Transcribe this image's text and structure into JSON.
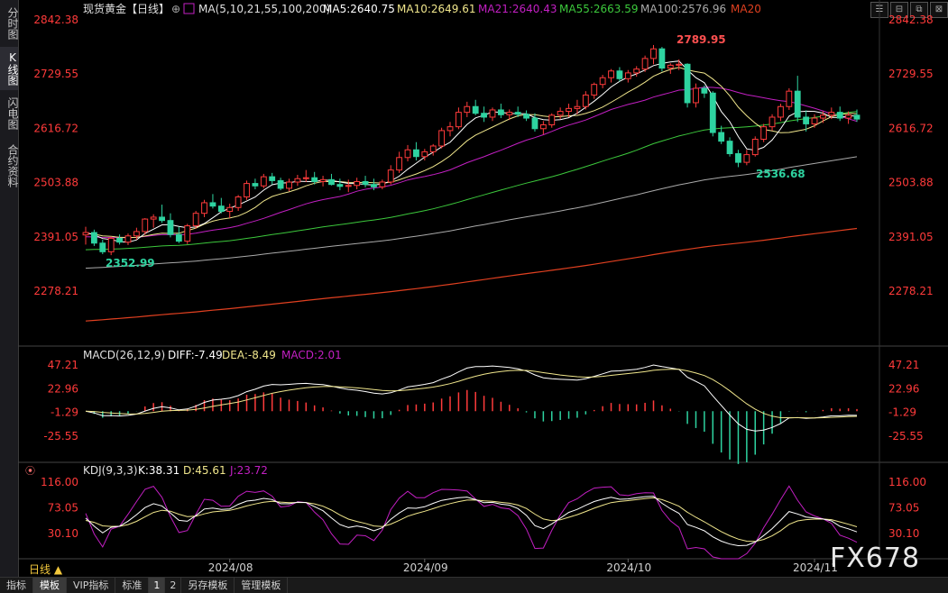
{
  "sidebar": {
    "items": [
      {
        "label": "分时图"
      },
      {
        "label": "K线图"
      },
      {
        "label": "闪电图"
      },
      {
        "label": "合约资料"
      }
    ]
  },
  "window_buttons": [
    "☰",
    "⊟",
    "⧉",
    "⊠"
  ],
  "legend": {
    "instrument": "现货黄金【日线】",
    "ma_group": "MA(5,10,21,55,100,200)",
    "ma5": "MA5:2640.75",
    "ma10": "MA10:2649.61",
    "ma21": "MA21:2640.43",
    "ma55": "MA55:2663.59",
    "ma100": "MA100:2576.96",
    "ma20": "MA20",
    "macd_title": "MACD(26,12,9)",
    "diff": "DIFF:-7.49",
    "dea": "DEA:-8.49",
    "macd_val": "MACD:2.01",
    "kdj_title": "KDJ(9,3,3)",
    "k": "K:38.31",
    "d": "D:45.61",
    "j": "J:23.72"
  },
  "axis": {
    "price_ticks": [
      "2842.38",
      "2729.55",
      "2616.72",
      "2503.88",
      "2391.05",
      "2278.21"
    ],
    "macd_ticks": [
      "47.21",
      "22.96",
      "-1.29",
      "-25.55"
    ],
    "kdj_ticks": [
      "116.00",
      "73.05",
      "30.10"
    ],
    "dates": [
      "2024/08",
      "2024/09",
      "2024/10",
      "2024/11"
    ]
  },
  "annotations": {
    "high": "2789.95",
    "low_nov": "2536.68",
    "low_aug": "2352.99"
  },
  "period": "日线 ▲",
  "watermark": "FX678",
  "bottom_tabs": [
    {
      "label": "指标"
    },
    {
      "label": "模板"
    },
    {
      "label": "VIP指标"
    },
    {
      "label": "标准"
    },
    {
      "label": "1"
    },
    {
      "label": "2"
    },
    {
      "label": "另存模板"
    },
    {
      "label": "管理模板"
    }
  ],
  "colors": {
    "up": "#ff3b3b",
    "down": "#2ed3a0",
    "ma5": "#ffffff",
    "ma10": "#f0e68c",
    "ma21": "#c21fc2",
    "ma55": "#3cc83c",
    "ma100": "#aaaaaa",
    "ma200": "#e04020",
    "axis_text": "#ff3a3a",
    "kdj_j": "#c21fc2"
  },
  "chart_data": {
    "type": "candlestick",
    "title": "现货黄金【日线】",
    "ylim": [
      2278.21,
      2842.38
    ],
    "candles": [
      {
        "o": 2395,
        "h": 2412,
        "l": 2375,
        "c": 2400
      },
      {
        "o": 2400,
        "h": 2406,
        "l": 2372,
        "c": 2378
      },
      {
        "o": 2378,
        "h": 2385,
        "l": 2355,
        "c": 2360
      },
      {
        "o": 2360,
        "h": 2392,
        "l": 2353,
        "c": 2388
      },
      {
        "o": 2388,
        "h": 2396,
        "l": 2375,
        "c": 2380
      },
      {
        "o": 2380,
        "h": 2398,
        "l": 2374,
        "c": 2393
      },
      {
        "o": 2393,
        "h": 2410,
        "l": 2385,
        "c": 2402
      },
      {
        "o": 2402,
        "h": 2430,
        "l": 2395,
        "c": 2428
      },
      {
        "o": 2428,
        "h": 2438,
        "l": 2410,
        "c": 2432
      },
      {
        "o": 2432,
        "h": 2458,
        "l": 2420,
        "c": 2425
      },
      {
        "o": 2425,
        "h": 2440,
        "l": 2390,
        "c": 2396
      },
      {
        "o": 2396,
        "h": 2412,
        "l": 2378,
        "c": 2382
      },
      {
        "o": 2382,
        "h": 2418,
        "l": 2376,
        "c": 2414
      },
      {
        "o": 2414,
        "h": 2445,
        "l": 2408,
        "c": 2440
      },
      {
        "o": 2440,
        "h": 2468,
        "l": 2432,
        "c": 2462
      },
      {
        "o": 2462,
        "h": 2480,
        "l": 2450,
        "c": 2455
      },
      {
        "o": 2455,
        "h": 2472,
        "l": 2440,
        "c": 2444
      },
      {
        "o": 2444,
        "h": 2460,
        "l": 2430,
        "c": 2452
      },
      {
        "o": 2452,
        "h": 2478,
        "l": 2445,
        "c": 2474
      },
      {
        "o": 2474,
        "h": 2508,
        "l": 2468,
        "c": 2502
      },
      {
        "o": 2502,
        "h": 2512,
        "l": 2490,
        "c": 2497
      },
      {
        "o": 2497,
        "h": 2522,
        "l": 2492,
        "c": 2516
      },
      {
        "o": 2516,
        "h": 2524,
        "l": 2500,
        "c": 2508
      },
      {
        "o": 2508,
        "h": 2514,
        "l": 2488,
        "c": 2492
      },
      {
        "o": 2492,
        "h": 2512,
        "l": 2486,
        "c": 2505
      },
      {
        "o": 2505,
        "h": 2520,
        "l": 2497,
        "c": 2512
      },
      {
        "o": 2512,
        "h": 2530,
        "l": 2505,
        "c": 2514
      },
      {
        "o": 2514,
        "h": 2526,
        "l": 2500,
        "c": 2506
      },
      {
        "o": 2506,
        "h": 2518,
        "l": 2496,
        "c": 2510
      },
      {
        "o": 2510,
        "h": 2522,
        "l": 2498,
        "c": 2500
      },
      {
        "o": 2500,
        "h": 2512,
        "l": 2488,
        "c": 2496
      },
      {
        "o": 2496,
        "h": 2510,
        "l": 2484,
        "c": 2498
      },
      {
        "o": 2498,
        "h": 2514,
        "l": 2490,
        "c": 2506
      },
      {
        "o": 2506,
        "h": 2518,
        "l": 2494,
        "c": 2500
      },
      {
        "o": 2500,
        "h": 2512,
        "l": 2488,
        "c": 2495
      },
      {
        "o": 2495,
        "h": 2510,
        "l": 2490,
        "c": 2505
      },
      {
        "o": 2505,
        "h": 2540,
        "l": 2500,
        "c": 2530
      },
      {
        "o": 2530,
        "h": 2568,
        "l": 2524,
        "c": 2556
      },
      {
        "o": 2556,
        "h": 2582,
        "l": 2548,
        "c": 2572
      },
      {
        "o": 2572,
        "h": 2588,
        "l": 2550,
        "c": 2558
      },
      {
        "o": 2558,
        "h": 2574,
        "l": 2550,
        "c": 2568
      },
      {
        "o": 2568,
        "h": 2584,
        "l": 2560,
        "c": 2580
      },
      {
        "o": 2580,
        "h": 2618,
        "l": 2575,
        "c": 2612
      },
      {
        "o": 2612,
        "h": 2630,
        "l": 2600,
        "c": 2620
      },
      {
        "o": 2620,
        "h": 2660,
        "l": 2615,
        "c": 2650
      },
      {
        "o": 2650,
        "h": 2672,
        "l": 2640,
        "c": 2662
      },
      {
        "o": 2662,
        "h": 2676,
        "l": 2644,
        "c": 2648
      },
      {
        "o": 2648,
        "h": 2662,
        "l": 2630,
        "c": 2640
      },
      {
        "o": 2640,
        "h": 2660,
        "l": 2632,
        "c": 2655
      },
      {
        "o": 2655,
        "h": 2668,
        "l": 2638,
        "c": 2645
      },
      {
        "o": 2645,
        "h": 2656,
        "l": 2634,
        "c": 2650
      },
      {
        "o": 2650,
        "h": 2662,
        "l": 2640,
        "c": 2646
      },
      {
        "o": 2646,
        "h": 2654,
        "l": 2632,
        "c": 2638
      },
      {
        "o": 2638,
        "h": 2648,
        "l": 2610,
        "c": 2616
      },
      {
        "o": 2616,
        "h": 2632,
        "l": 2604,
        "c": 2624
      },
      {
        "o": 2624,
        "h": 2648,
        "l": 2618,
        "c": 2644
      },
      {
        "o": 2644,
        "h": 2660,
        "l": 2636,
        "c": 2652
      },
      {
        "o": 2652,
        "h": 2668,
        "l": 2640,
        "c": 2658
      },
      {
        "o": 2658,
        "h": 2676,
        "l": 2646,
        "c": 2662
      },
      {
        "o": 2662,
        "h": 2694,
        "l": 2656,
        "c": 2686
      },
      {
        "o": 2686,
        "h": 2712,
        "l": 2678,
        "c": 2708
      },
      {
        "o": 2708,
        "h": 2728,
        "l": 2700,
        "c": 2722
      },
      {
        "o": 2722,
        "h": 2740,
        "l": 2712,
        "c": 2736
      },
      {
        "o": 2736,
        "h": 2744,
        "l": 2714,
        "c": 2720
      },
      {
        "o": 2720,
        "h": 2738,
        "l": 2712,
        "c": 2732
      },
      {
        "o": 2732,
        "h": 2746,
        "l": 2724,
        "c": 2740
      },
      {
        "o": 2740,
        "h": 2768,
        "l": 2734,
        "c": 2762
      },
      {
        "o": 2762,
        "h": 2790,
        "l": 2750,
        "c": 2782
      },
      {
        "o": 2782,
        "h": 2786,
        "l": 2735,
        "c": 2742
      },
      {
        "o": 2742,
        "h": 2752,
        "l": 2730,
        "c": 2748
      },
      {
        "o": 2748,
        "h": 2760,
        "l": 2738,
        "c": 2750
      },
      {
        "o": 2750,
        "h": 2752,
        "l": 2660,
        "c": 2670
      },
      {
        "o": 2670,
        "h": 2710,
        "l": 2660,
        "c": 2700
      },
      {
        "o": 2700,
        "h": 2706,
        "l": 2680,
        "c": 2690
      },
      {
        "o": 2690,
        "h": 2694,
        "l": 2600,
        "c": 2608
      },
      {
        "o": 2608,
        "h": 2622,
        "l": 2584,
        "c": 2590
      },
      {
        "o": 2590,
        "h": 2598,
        "l": 2558,
        "c": 2564
      },
      {
        "o": 2564,
        "h": 2572,
        "l": 2536,
        "c": 2546
      },
      {
        "o": 2546,
        "h": 2572,
        "l": 2540,
        "c": 2562
      },
      {
        "o": 2562,
        "h": 2600,
        "l": 2558,
        "c": 2594
      },
      {
        "o": 2594,
        "h": 2626,
        "l": 2588,
        "c": 2620
      },
      {
        "o": 2620,
        "h": 2646,
        "l": 2612,
        "c": 2640
      },
      {
        "o": 2640,
        "h": 2668,
        "l": 2632,
        "c": 2662
      },
      {
        "o": 2662,
        "h": 2700,
        "l": 2655,
        "c": 2694
      },
      {
        "o": 2694,
        "h": 2726,
        "l": 2630,
        "c": 2640
      },
      {
        "o": 2640,
        "h": 2654,
        "l": 2610,
        "c": 2626
      },
      {
        "o": 2626,
        "h": 2646,
        "l": 2618,
        "c": 2638
      },
      {
        "o": 2638,
        "h": 2652,
        "l": 2628,
        "c": 2644
      },
      {
        "o": 2644,
        "h": 2660,
        "l": 2636,
        "c": 2650
      },
      {
        "o": 2650,
        "h": 2662,
        "l": 2632,
        "c": 2638
      },
      {
        "o": 2638,
        "h": 2652,
        "l": 2626,
        "c": 2644
      },
      {
        "o": 2644,
        "h": 2656,
        "l": 2630,
        "c": 2636
      }
    ]
  }
}
